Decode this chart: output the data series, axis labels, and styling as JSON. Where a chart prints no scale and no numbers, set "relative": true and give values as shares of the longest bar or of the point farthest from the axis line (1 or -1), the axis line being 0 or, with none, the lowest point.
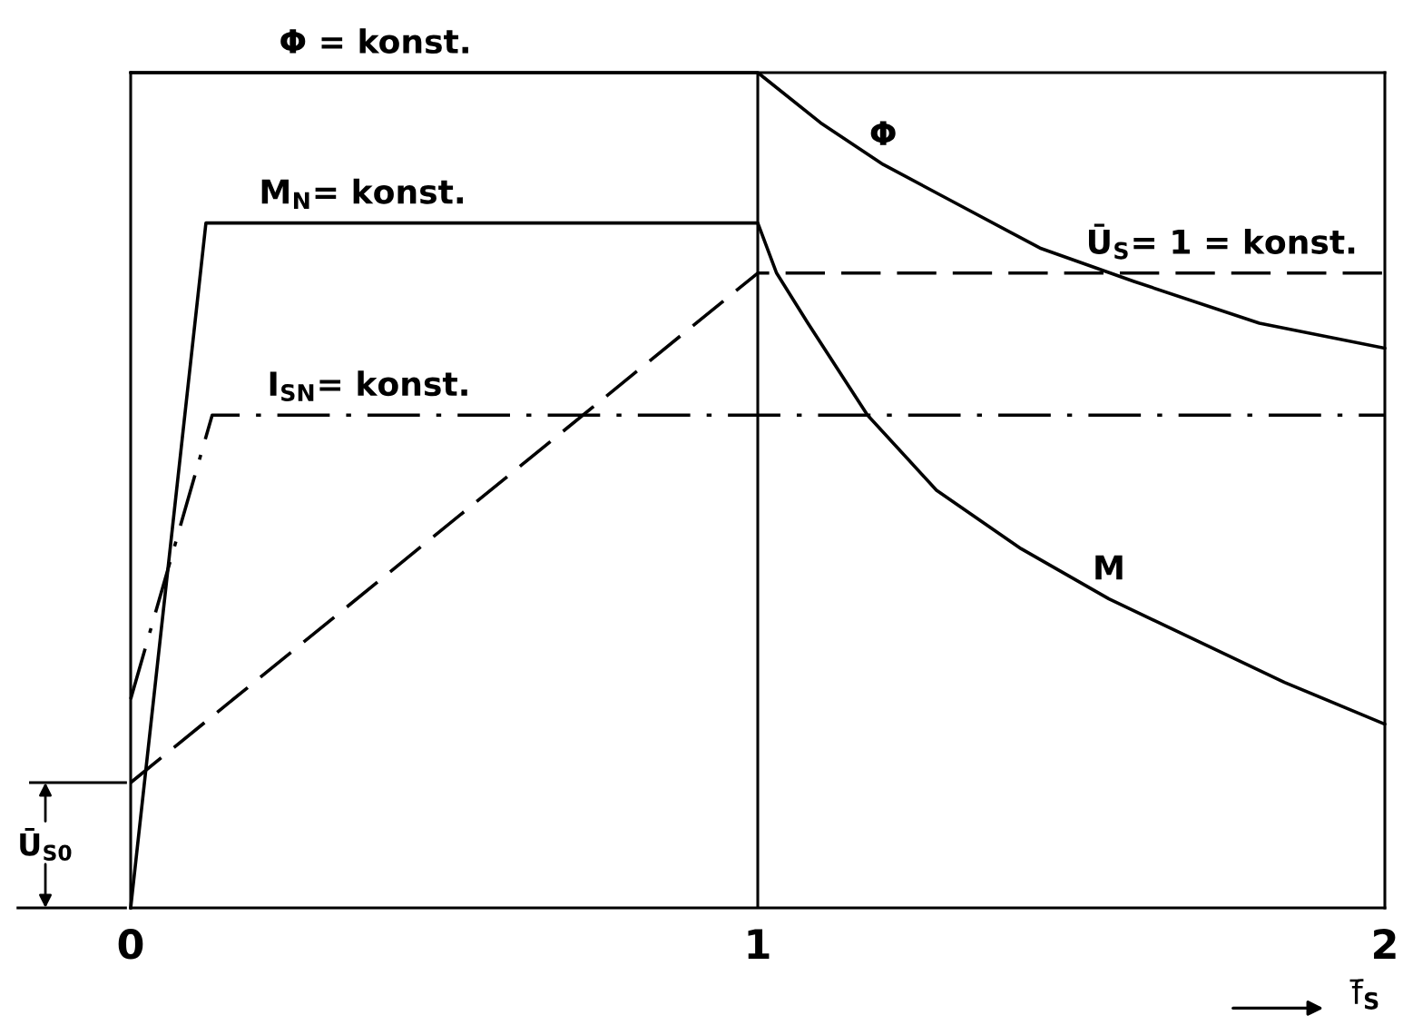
{
  "chart_data": {
    "type": "line",
    "relative": true,
    "xlim": [
      0,
      2
    ],
    "xticks": [
      0,
      1,
      2
    ],
    "xlabel": "f̄$_{S}$",
    "tick_labels": "x",
    "series": [
      {
        "color": "#000000",
        "line_style": "solid",
        "x": [
          0,
          1,
          1.1,
          1.2,
          1.3,
          1.45,
          1.6,
          1.8,
          2
        ],
        "values": [
          1,
          1,
          0.94,
          0.89,
          0.85,
          0.79,
          0.75,
          0.7,
          0.67
        ]
      },
      {
        "color": "#000000",
        "line_style": "solid",
        "x": [
          0,
          0.12,
          1,
          1.03,
          1.08,
          1.175,
          1.285,
          1.42,
          1.56,
          1.7,
          1.84,
          2
        ],
        "values": [
          0,
          0.82,
          0.82,
          0.76,
          0.7,
          0.59,
          0.5,
          0.43,
          0.37,
          0.32,
          0.27,
          0.22
        ]
      },
      {
        "color": "#000000",
        "line_style": "dashed",
        "x": [
          0,
          1,
          2
        ],
        "values": [
          0.15,
          0.76,
          0.76
        ]
      },
      {
        "color": "#000000",
        "line_style": "dashdot",
        "x": [
          0,
          0.13,
          2
        ],
        "values": [
          0.25,
          0.59,
          0.59
        ]
      }
    ],
    "ref_lines": [
      {
        "axis": "x",
        "value": 1,
        "color": "#000000"
      }
    ],
    "annotations": [
      {
        "text": "Φ = konst.",
        "x": 0.39,
        "y": 1
      },
      {
        "text": "M$_{N}$= konst.",
        "x": 0.37,
        "y": 0.82
      },
      {
        "text": "I$_{SN}$= konst.",
        "x": 0.38,
        "y": 0.59
      },
      {
        "text": "Ū$_{S}$= 1 = konst.",
        "x": 1.74,
        "y": 0.76
      },
      {
        "text": "Φ",
        "x": 1.2,
        "y": 0.89
      },
      {
        "text": "M",
        "x": 1.56,
        "y": 0.37
      },
      {
        "text": "Ū$_{S0}$",
        "x": 0,
        "y": 0.15
      }
    ]
  }
}
